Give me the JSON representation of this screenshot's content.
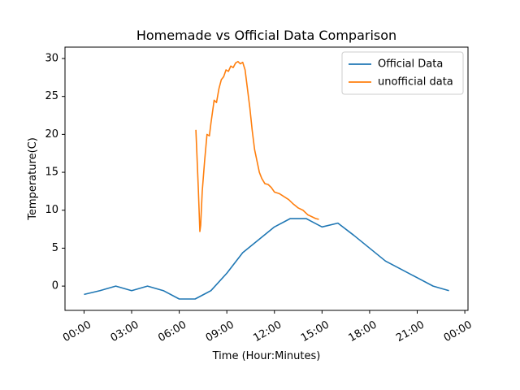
{
  "chart_data": {
    "type": "line",
    "title": "Homemade vs Official Data Comparison",
    "xlabel": "Time (Hour:Minutes)",
    "ylabel": "Temperature(C)",
    "x_unit": "hours",
    "xlim": [
      -1.2,
      24.2
    ],
    "ylim": [
      -3.2,
      31.5
    ],
    "xticks": [
      0,
      3,
      6,
      9,
      12,
      15,
      18,
      21,
      24
    ],
    "xtick_labels": [
      "00:00",
      "03:00",
      "06:00",
      "09:00",
      "12:00",
      "15:00",
      "18:00",
      "21:00",
      "00:00"
    ],
    "yticks": [
      0,
      5,
      10,
      15,
      20,
      25,
      30
    ],
    "ytick_labels": [
      "0",
      "5",
      "10",
      "15",
      "20",
      "25",
      "30"
    ],
    "grid": false,
    "legend_position": "top-right",
    "series": [
      {
        "name": "Official Data",
        "color": "#1f77b4",
        "x": [
          0,
          1,
          2,
          3,
          4,
          5,
          6,
          7,
          8,
          9,
          10,
          11,
          12,
          13,
          14,
          15,
          16,
          17,
          18,
          19,
          20,
          21,
          22,
          23
        ],
        "y": [
          -1.1,
          -0.6,
          0.0,
          -0.6,
          0.0,
          -0.6,
          -1.7,
          -1.7,
          -0.6,
          1.7,
          4.4,
          6.1,
          7.8,
          8.9,
          8.9,
          7.8,
          8.3,
          6.7,
          5.0,
          3.3,
          2.2,
          1.1,
          0.0,
          -0.6
        ]
      },
      {
        "name": "unofficial data",
        "color": "#ff7f0e",
        "x": [
          7.05,
          7.2,
          7.3,
          7.35,
          7.45,
          7.6,
          7.75,
          7.9,
          8.0,
          8.1,
          8.2,
          8.35,
          8.5,
          8.65,
          8.8,
          8.95,
          9.1,
          9.25,
          9.4,
          9.55,
          9.7,
          9.85,
          10.0,
          10.15,
          10.3,
          10.45,
          10.6,
          10.75,
          10.9,
          11.05,
          11.2,
          11.4,
          11.6,
          11.8,
          12.0,
          12.3,
          12.6,
          12.9,
          13.2,
          13.5,
          13.8,
          14.1,
          14.4,
          14.6,
          14.8
        ],
        "y": [
          20.6,
          13.0,
          7.2,
          8.0,
          12.5,
          16.5,
          20.0,
          19.8,
          21.5,
          23.0,
          24.5,
          24.2,
          26.0,
          27.2,
          27.6,
          28.5,
          28.3,
          29.0,
          28.8,
          29.4,
          29.6,
          29.3,
          29.5,
          28.5,
          26.0,
          23.5,
          20.5,
          18.0,
          16.5,
          15.0,
          14.2,
          13.5,
          13.4,
          13.0,
          12.4,
          12.2,
          11.8,
          11.4,
          10.8,
          10.3,
          10.0,
          9.4,
          9.1,
          8.9,
          8.8
        ]
      }
    ]
  }
}
